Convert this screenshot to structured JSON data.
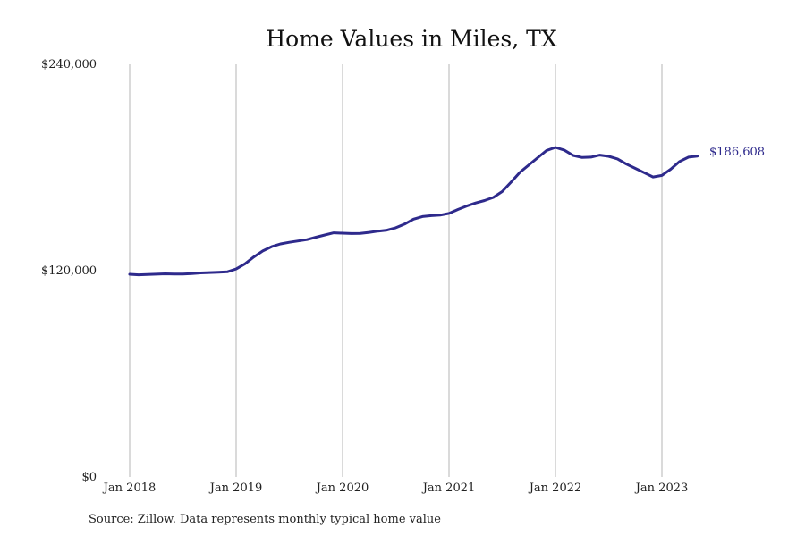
{
  "chart_data": {
    "type": "line",
    "title": "Home Values in Miles, TX",
    "source": "Source: Zillow. Data represents monthly typical home value",
    "xlabel": "",
    "ylabel": "",
    "ylim": [
      0,
      240000
    ],
    "y_ticks": [
      {
        "value": 0,
        "label": "$0"
      },
      {
        "value": 120000,
        "label": "$120,000"
      },
      {
        "value": 240000,
        "label": "$240,000"
      }
    ],
    "x_ticks": [
      {
        "value": "2018-01",
        "label": "Jan 2018"
      },
      {
        "value": "2019-01",
        "label": "Jan 2019"
      },
      {
        "value": "2020-01",
        "label": "Jan 2020"
      },
      {
        "value": "2021-01",
        "label": "Jan 2021"
      },
      {
        "value": "2022-01",
        "label": "Jan 2022"
      },
      {
        "value": "2023-01",
        "label": "Jan 2023"
      }
    ],
    "grid": "vertical",
    "color": "#2e2a8c",
    "end_label": "$186,608",
    "series": [
      {
        "x": [
          "2018-01",
          "2018-02",
          "2018-03",
          "2018-04",
          "2018-05",
          "2018-06",
          "2018-07",
          "2018-08",
          "2018-09",
          "2018-10",
          "2018-11",
          "2018-12",
          "2019-01",
          "2019-02",
          "2019-03",
          "2019-04",
          "2019-05",
          "2019-06",
          "2019-07",
          "2019-08",
          "2019-09",
          "2019-10",
          "2019-11",
          "2019-12",
          "2020-01",
          "2020-02",
          "2020-03",
          "2020-04",
          "2020-05",
          "2020-06",
          "2020-07",
          "2020-08",
          "2020-09",
          "2020-10",
          "2020-11",
          "2020-12",
          "2021-01",
          "2021-02",
          "2021-03",
          "2021-04",
          "2021-05",
          "2021-06",
          "2021-07",
          "2021-08",
          "2021-09",
          "2021-10",
          "2021-11",
          "2021-12",
          "2022-01",
          "2022-02",
          "2022-03",
          "2022-04",
          "2022-05",
          "2022-06",
          "2022-07",
          "2022-08",
          "2022-09",
          "2022-10",
          "2022-11",
          "2022-12",
          "2023-01",
          "2023-02",
          "2023-03",
          "2023-04",
          "2023-05"
        ],
        "values": [
          117900,
          117600,
          117800,
          118000,
          118200,
          118100,
          118100,
          118300,
          118700,
          118900,
          119100,
          119300,
          121000,
          124000,
          128000,
          131500,
          134000,
          135600,
          136500,
          137300,
          138100,
          139500,
          140800,
          142000,
          141800,
          141600,
          141700,
          142300,
          143000,
          143600,
          145000,
          147100,
          150000,
          151500,
          152000,
          152300,
          153300,
          155600,
          157600,
          159400,
          160800,
          162600,
          166000,
          171500,
          177200,
          181500,
          185700,
          189900,
          191700,
          190100,
          187000,
          185800,
          186000,
          187200,
          186500,
          185000,
          182000,
          179500,
          177000,
          174500,
          175400,
          179000,
          183500,
          186000,
          186608
        ]
      }
    ]
  }
}
